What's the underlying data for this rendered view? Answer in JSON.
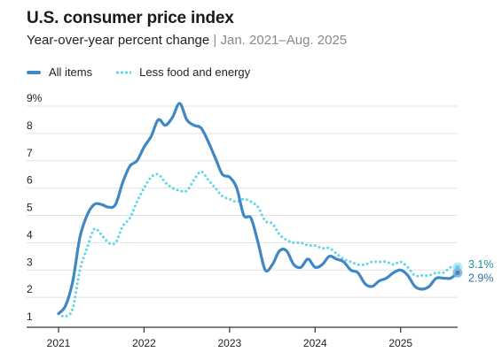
{
  "header": {
    "title": "U.S. consumer price index",
    "subtitle_main": "Year-over-year percent change",
    "subtitle_sep": "|",
    "subtitle_range": "Jan. 2021–Aug. 2025"
  },
  "colors": {
    "all_items": "#3f88c5",
    "core": "#5fd6e6",
    "grid": "#e2e2e2",
    "axis": "#333333"
  },
  "chart_data": {
    "type": "line",
    "x_unit": "months since Jan. 2021 (year labels at Jan.)",
    "xlim": [
      0,
      56
    ],
    "ylim": [
      1,
      9
    ],
    "y_ticks": [
      "1",
      "2",
      "3",
      "4",
      "5",
      "6",
      "7",
      "8",
      "9%"
    ],
    "y_tick_values": [
      1,
      2,
      3,
      4,
      5,
      6,
      7,
      8,
      9
    ],
    "x_ticks": [
      {
        "label": "2021",
        "value": 0
      },
      {
        "label": "2022",
        "value": 12
      },
      {
        "label": "2023",
        "value": 24
      },
      {
        "label": "2024",
        "value": 36
      },
      {
        "label": "2025",
        "value": 48
      }
    ],
    "legend_position": "top-left",
    "grid": true,
    "series": [
      {
        "name": "All items",
        "style": "solid",
        "end_label": "2.9%",
        "values": [
          1.4,
          1.7,
          2.6,
          4.2,
          5.0,
          5.4,
          5.4,
          5.3,
          5.4,
          6.2,
          6.8,
          7.0,
          7.5,
          7.9,
          8.5,
          8.3,
          8.6,
          9.1,
          8.5,
          8.3,
          8.2,
          7.7,
          7.1,
          6.5,
          6.4,
          6.0,
          5.0,
          4.9,
          4.0,
          3.0,
          3.2,
          3.7,
          3.7,
          3.2,
          3.1,
          3.4,
          3.1,
          3.2,
          3.5,
          3.4,
          3.3,
          3.0,
          2.9,
          2.5,
          2.4,
          2.6,
          2.7,
          2.9,
          3.0,
          2.8,
          2.4,
          2.3,
          2.4,
          2.7,
          2.7,
          2.7,
          2.9
        ]
      },
      {
        "name": "Less food and energy",
        "style": "dotted",
        "end_label": "3.1%",
        "values": [
          1.4,
          1.3,
          1.6,
          3.0,
          3.8,
          4.5,
          4.3,
          4.0,
          4.0,
          4.6,
          4.9,
          5.5,
          6.0,
          6.4,
          6.5,
          6.2,
          6.0,
          5.9,
          5.9,
          6.3,
          6.6,
          6.3,
          6.0,
          5.7,
          5.6,
          5.5,
          5.6,
          5.5,
          5.3,
          4.8,
          4.7,
          4.3,
          4.1,
          4.0,
          4.0,
          3.9,
          3.9,
          3.8,
          3.8,
          3.6,
          3.4,
          3.3,
          3.2,
          3.2,
          3.3,
          3.3,
          3.3,
          3.2,
          3.3,
          3.1,
          2.8,
          2.8,
          2.8,
          2.9,
          2.9,
          3.1,
          3.1
        ]
      }
    ]
  }
}
